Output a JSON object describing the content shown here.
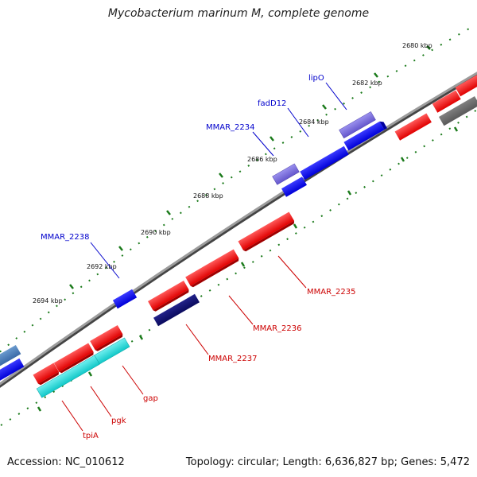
{
  "title": "Mycobacterium marinum M, complete genome",
  "footer": {
    "accession": "Accession: NC_010612",
    "summary": "Topology: circular; Length: 6,636,827 bp; Genes: 5,472"
  },
  "colors": {
    "plus_label": "#0000cc",
    "minus_label": "#cc0000",
    "backbone": "#8c8c8c",
    "tick": "#1a7a1a"
  },
  "tick_labels": [
    {
      "id": "2680",
      "text": "2680 kbp"
    },
    {
      "id": "2682",
      "text": "2682 kbp"
    },
    {
      "id": "2684",
      "text": "2684 kbp"
    },
    {
      "id": "2686",
      "text": "2686 kbp"
    },
    {
      "id": "2688",
      "text": "2688 kbp"
    },
    {
      "id": "2690",
      "text": "2690 kbp"
    },
    {
      "id": "2692",
      "text": "2692 kbp"
    },
    {
      "id": "2694",
      "text": "2694 kbp"
    }
  ],
  "gene_labels": {
    "lipO": "lipO",
    "fadD12": "fadD12",
    "mmar_2234": "MMAR_2234",
    "mmar_2238": "MMAR_2238",
    "mmar_2235": "MMAR_2235",
    "mmar_2236": "MMAR_2236",
    "mmar_2237": "MMAR_2237",
    "gap": "gap",
    "pgk": "pgk",
    "tpiA": "tpiA"
  }
}
